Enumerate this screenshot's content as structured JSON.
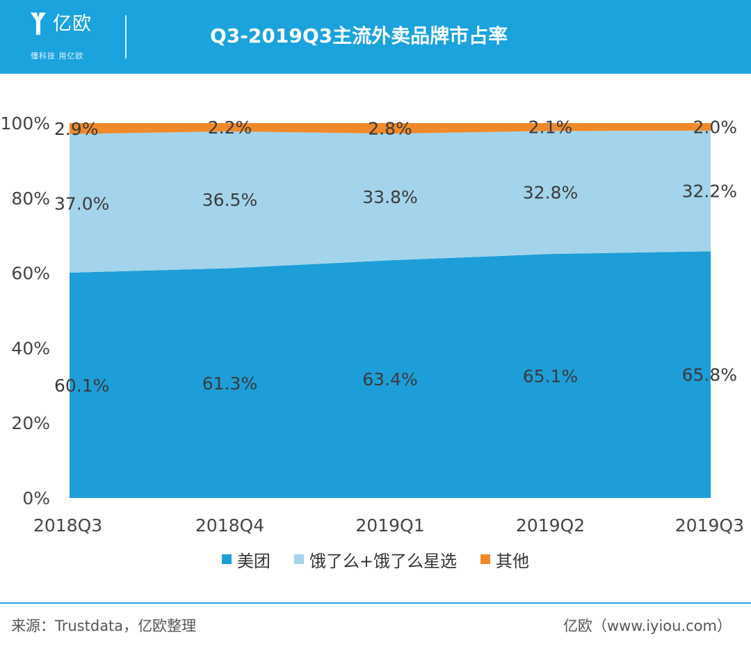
{
  "header": {
    "brand_name": "亿欧",
    "slogan": "懂科技 用亿欧",
    "title": "Q3-2019Q3主流外卖品牌市占率",
    "background": "#1aa3dd"
  },
  "chart_data": {
    "type": "area",
    "stacked": true,
    "title": "Q3-2019Q3主流外卖品牌市占率",
    "categories": [
      "2018Q3",
      "2018Q4",
      "2019Q1",
      "2019Q2",
      "2019Q3"
    ],
    "y_tick_labels": [
      "0%",
      "20%",
      "40%",
      "60%",
      "80%",
      "100%"
    ],
    "ylim": [
      0,
      100
    ],
    "grid": false,
    "legend_position": "bottom",
    "series": [
      {
        "name": "美团",
        "color": "#1e9ed8",
        "values": [
          60.1,
          61.3,
          63.4,
          65.1,
          65.8
        ],
        "labels": [
          "60.1%",
          "61.3%",
          "63.4%",
          "65.1%",
          "65.8%"
        ]
      },
      {
        "name": "饿了么+饿了么星选",
        "color": "#a3d4eb",
        "values": [
          37.0,
          36.5,
          33.8,
          32.8,
          32.2
        ],
        "labels": [
          "37.0%",
          "36.5%",
          "33.8%",
          "32.8%",
          "32.2%"
        ]
      },
      {
        "name": "其他",
        "color": "#f0892a",
        "values": [
          2.9,
          2.2,
          2.8,
          2.1,
          2.0
        ],
        "labels": [
          "2.9%",
          "2.2%",
          "2.8%",
          "2.1%",
          "2.0%"
        ]
      }
    ]
  },
  "footer": {
    "source": "来源：Trustdata，亿欧整理",
    "site": "亿欧（www.iyiou.com）"
  }
}
